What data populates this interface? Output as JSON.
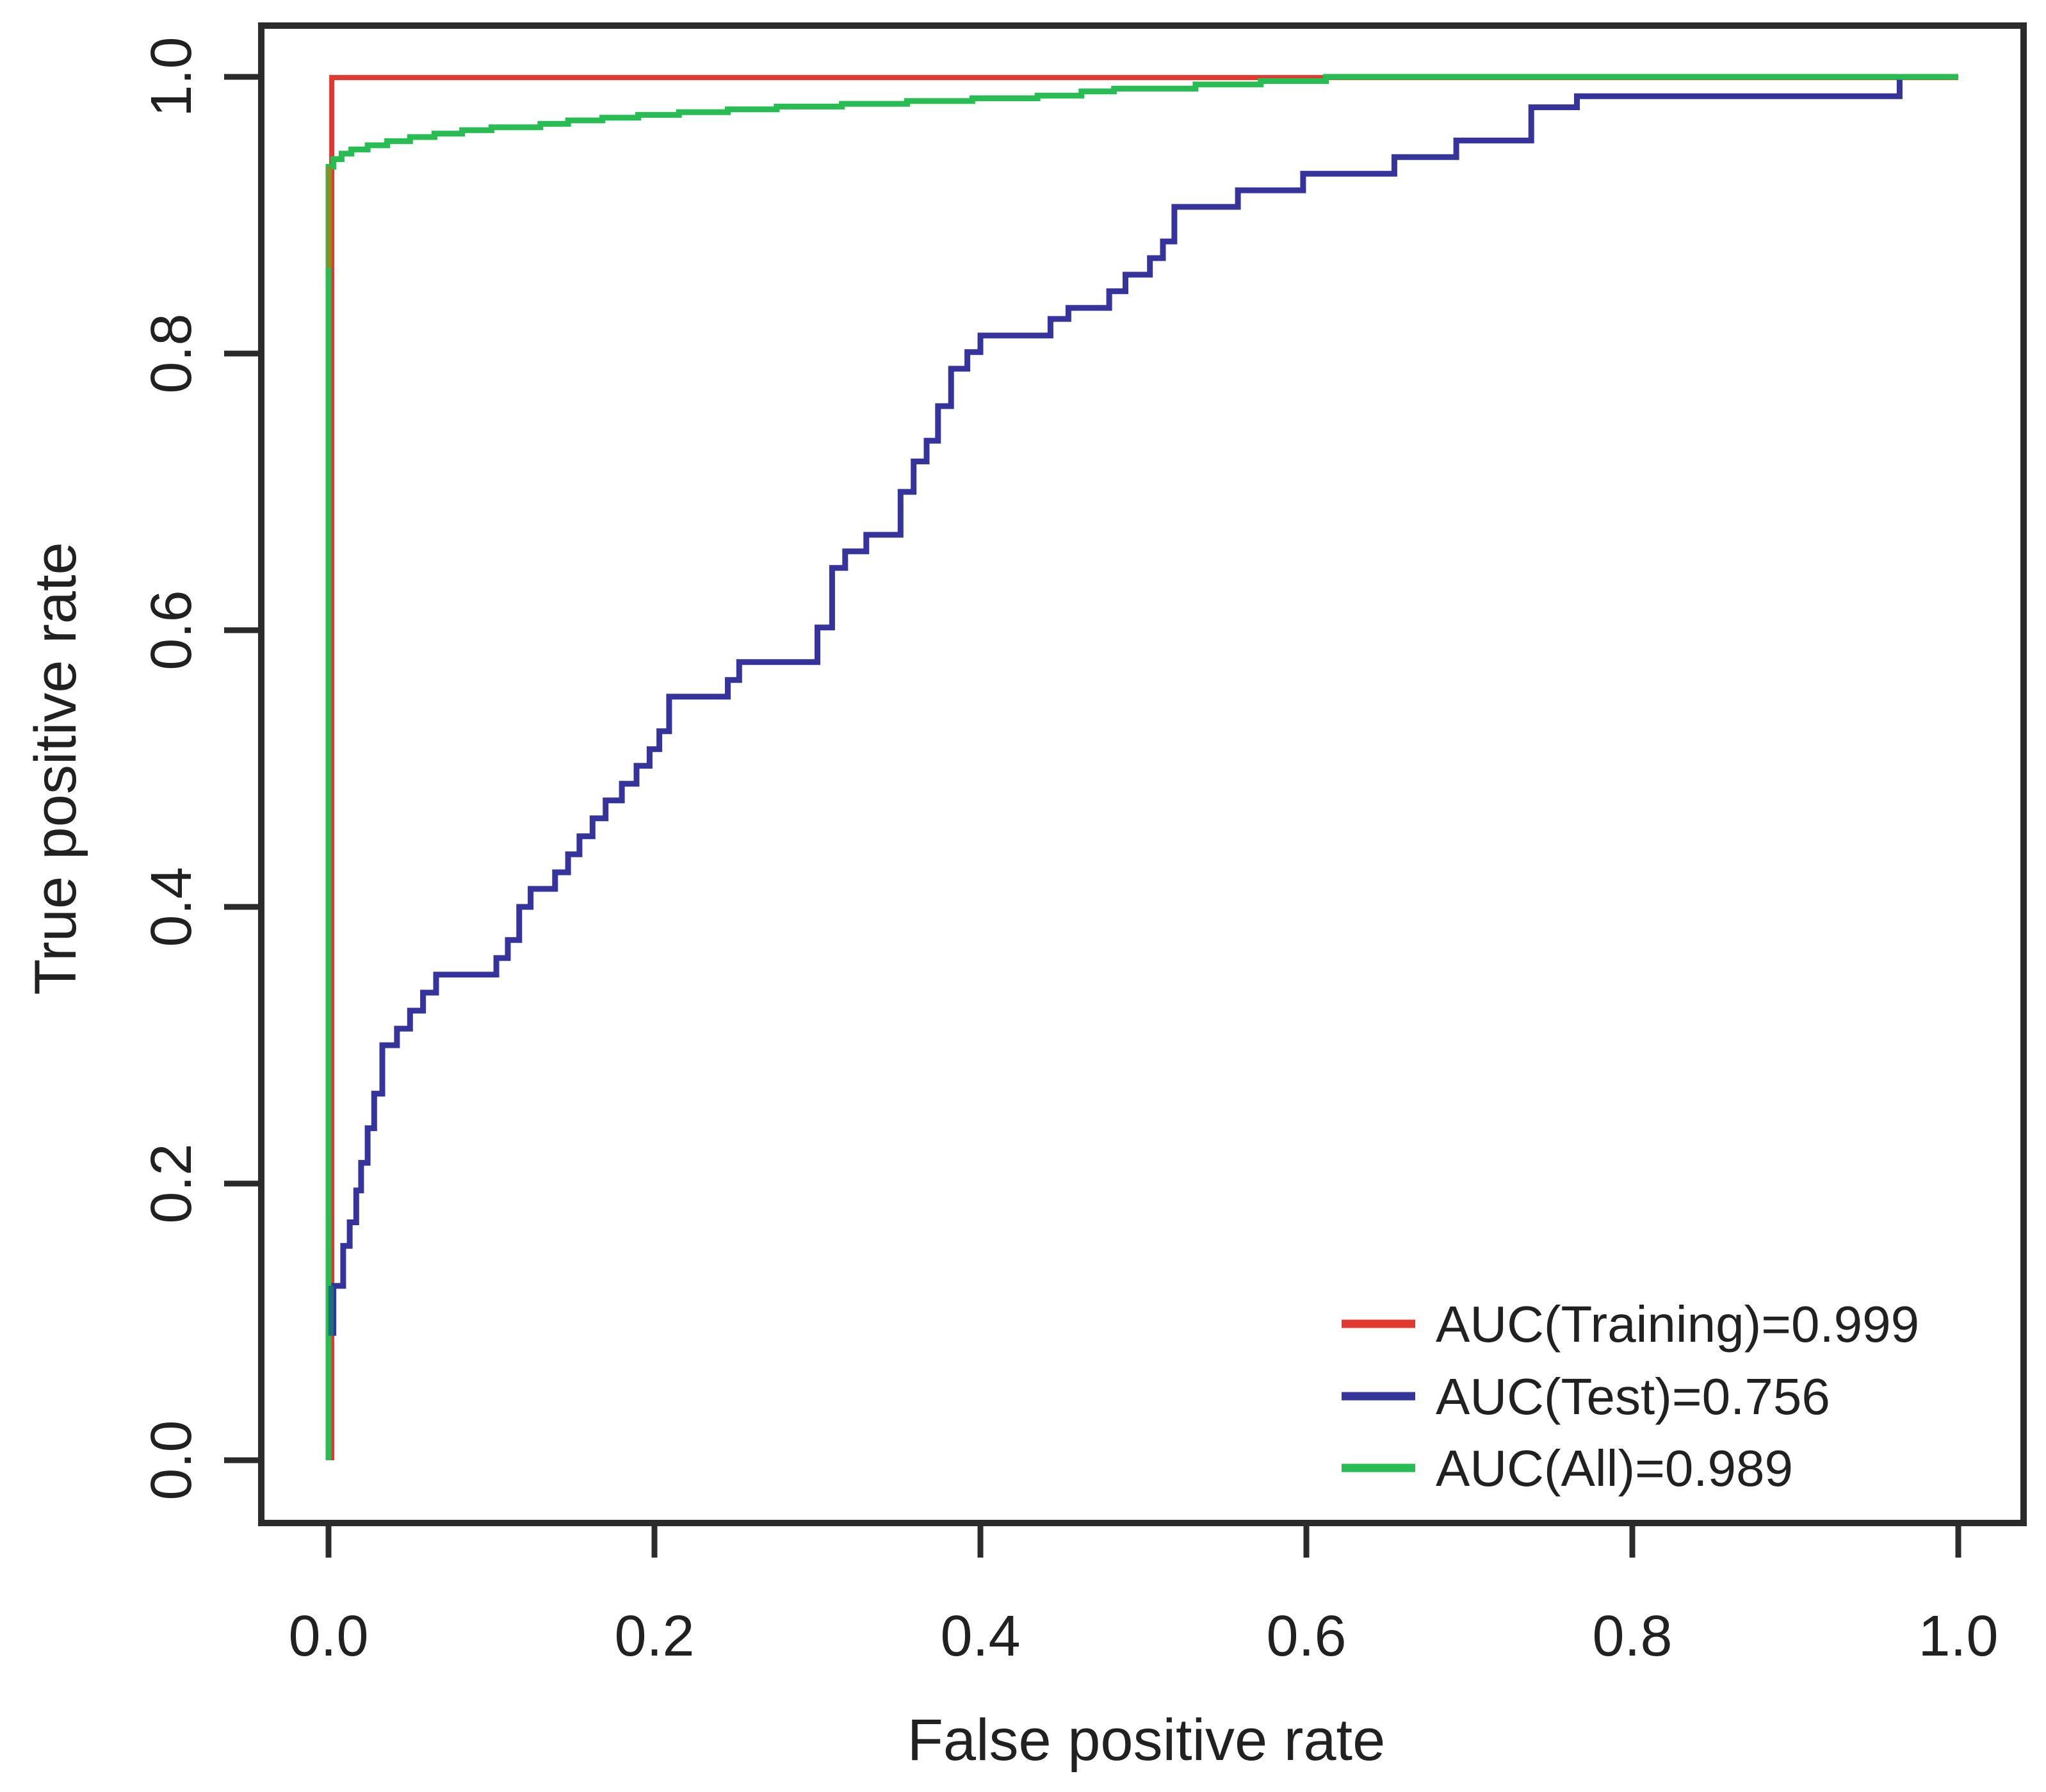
{
  "figure": {
    "background_color": "#ffffff",
    "text_color": "#212121",
    "frame_color": "#2b2b2b"
  },
  "chart_data": {
    "type": "line",
    "subtype": "roc_step_curves",
    "title": "",
    "xlabel": "False positive rate",
    "ylabel": "True positive rate",
    "xlim": [
      0,
      1
    ],
    "ylim": [
      0,
      1
    ],
    "grid": false,
    "x_tick_labels": [
      "0.0",
      "0.2",
      "0.4",
      "0.6",
      "0.8",
      "1.0"
    ],
    "x_tick_values": [
      0,
      0.2,
      0.4,
      0.6,
      0.8,
      1.0
    ],
    "y_tick_labels": [
      "0.0",
      "0.2",
      "0.4",
      "0.6",
      "0.8",
      "1.0"
    ],
    "y_tick_values": [
      0,
      0.2,
      0.4,
      0.6,
      0.8,
      1.0
    ],
    "legend": {
      "position": "bottom-right",
      "entries": [
        {
          "label": "AUC(Training)=0.999",
          "color": "#e2382f"
        },
        {
          "label": "AUC(Test)=0.756",
          "color": "#34349c"
        },
        {
          "label": "AUC(All)=0.989",
          "color": "#27bd52"
        }
      ]
    },
    "series": [
      {
        "name": "Training",
        "auc": 0.999,
        "color": "#e2382f",
        "stroke_width": 8,
        "step_points": [
          [
            0.002,
            0.0
          ],
          [
            0.002,
            0.9995
          ],
          [
            1.0,
            0.9995
          ]
        ]
      },
      {
        "name": "Test",
        "auc": 0.756,
        "color": "#34349c",
        "stroke_width": 9,
        "step_points": [
          [
            0.003,
            0.09
          ],
          [
            0.003,
            0.126
          ],
          [
            0.009,
            0.155
          ],
          [
            0.013,
            0.172
          ],
          [
            0.017,
            0.195
          ],
          [
            0.02,
            0.215
          ],
          [
            0.024,
            0.24
          ],
          [
            0.028,
            0.265
          ],
          [
            0.033,
            0.3
          ],
          [
            0.042,
            0.312
          ],
          [
            0.05,
            0.325
          ],
          [
            0.058,
            0.338
          ],
          [
            0.066,
            0.351
          ],
          [
            0.103,
            0.363
          ],
          [
            0.11,
            0.376
          ],
          [
            0.117,
            0.4
          ],
          [
            0.124,
            0.413
          ],
          [
            0.139,
            0.425
          ],
          [
            0.147,
            0.438
          ],
          [
            0.154,
            0.451
          ],
          [
            0.162,
            0.464
          ],
          [
            0.17,
            0.477
          ],
          [
            0.18,
            0.489
          ],
          [
            0.189,
            0.502
          ],
          [
            0.197,
            0.514
          ],
          [
            0.203,
            0.527
          ],
          [
            0.209,
            0.552
          ],
          [
            0.245,
            0.564
          ],
          [
            0.252,
            0.577
          ],
          [
            0.3,
            0.602
          ],
          [
            0.309,
            0.645
          ],
          [
            0.317,
            0.657
          ],
          [
            0.33,
            0.669
          ],
          [
            0.351,
            0.7
          ],
          [
            0.359,
            0.722
          ],
          [
            0.367,
            0.737
          ],
          [
            0.374,
            0.762
          ],
          [
            0.382,
            0.789
          ],
          [
            0.392,
            0.801
          ],
          [
            0.4,
            0.813
          ],
          [
            0.443,
            0.825
          ],
          [
            0.454,
            0.833
          ],
          [
            0.479,
            0.845
          ],
          [
            0.489,
            0.857
          ],
          [
            0.504,
            0.869
          ],
          [
            0.512,
            0.881
          ],
          [
            0.519,
            0.906
          ],
          [
            0.558,
            0.918
          ],
          [
            0.598,
            0.93
          ],
          [
            0.654,
            0.942
          ],
          [
            0.692,
            0.954
          ],
          [
            0.738,
            0.978
          ],
          [
            0.766,
            0.986
          ],
          [
            0.964,
            1.0
          ],
          [
            1.0,
            1.0
          ]
        ]
      },
      {
        "name": "All",
        "auc": 0.989,
        "color": "#27bd52",
        "stroke_width": 9,
        "step_points": [
          [
            0.0,
            0.0
          ],
          [
            0.0,
            0.935
          ],
          [
            0.003,
            0.9405
          ],
          [
            0.008,
            0.9445
          ],
          [
            0.014,
            0.9475
          ],
          [
            0.024,
            0.9505
          ],
          [
            0.036,
            0.9535
          ],
          [
            0.05,
            0.9565
          ],
          [
            0.065,
            0.959
          ],
          [
            0.082,
            0.9615
          ],
          [
            0.1,
            0.9635
          ],
          [
            0.13,
            0.966
          ],
          [
            0.147,
            0.9685
          ],
          [
            0.168,
            0.9705
          ],
          [
            0.19,
            0.9725
          ],
          [
            0.215,
            0.9745
          ],
          [
            0.245,
            0.9765
          ],
          [
            0.275,
            0.9785
          ],
          [
            0.315,
            0.9805
          ],
          [
            0.355,
            0.9825
          ],
          [
            0.395,
            0.9845
          ],
          [
            0.435,
            0.9865
          ],
          [
            0.462,
            0.9895
          ],
          [
            0.482,
            0.9915
          ],
          [
            0.532,
            0.9945
          ],
          [
            0.572,
            0.997
          ],
          [
            0.612,
            1.0
          ],
          [
            1.0,
            1.0
          ]
        ]
      }
    ],
    "overlap_artifacts": [
      {
        "name": "red-green-overlap",
        "x": 0.0005,
        "y1": 0.862,
        "y2": 0.935,
        "color": "#8a8f22",
        "width": 8
      },
      {
        "name": "blue-green-overlap",
        "x": 0.0015,
        "y1": 0.09,
        "y2": 0.126,
        "color": "#1b6f7e",
        "width": 8
      }
    ]
  }
}
